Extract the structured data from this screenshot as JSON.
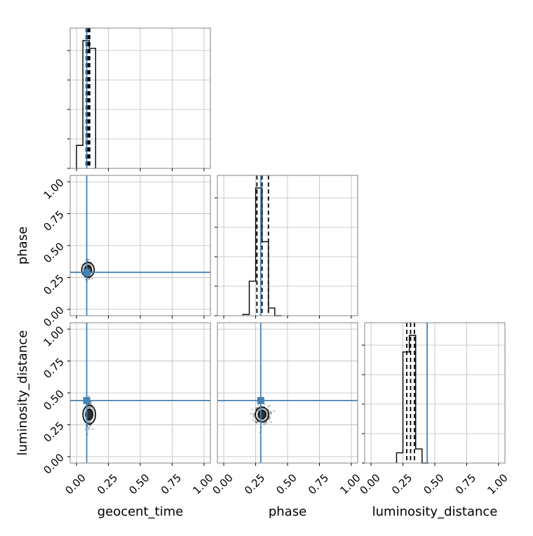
{
  "chart_data": {
    "type": "corner",
    "parameters": [
      "geocent_time",
      "phase",
      "luminosity_distance"
    ],
    "axis_labels": [
      "geocent_time",
      "phase",
      "luminosity_distance"
    ],
    "axis_range": [
      -0.05,
      1.05
    ],
    "tick_values": [
      0.0,
      0.25,
      0.5,
      0.75,
      1.0
    ],
    "tick_labels": [
      "0.00",
      "0.25",
      "0.50",
      "0.75",
      "1.00"
    ],
    "grid": true,
    "colors": {
      "truth": "#4682b4",
      "histogram": "#000000",
      "samples": "#555555",
      "grid": "#bbbbbb",
      "axes": "#808080"
    },
    "truths": {
      "geocent_time": 0.08,
      "phase": 0.29,
      "luminosity_distance": 0.44
    },
    "histograms": [
      {
        "parameter": "geocent_time",
        "bin_edges": [
          0.0,
          0.05,
          0.1,
          0.15
        ],
        "counts": [
          0.18,
          1.0,
          0.94
        ],
        "quantile_lines": [
          0.08,
          0.09,
          0.1
        ]
      },
      {
        "parameter": "phase",
        "bin_edges": [
          0.15,
          0.2,
          0.25,
          0.3,
          0.35,
          0.4,
          0.45
        ],
        "counts": [
          0.01,
          0.27,
          1.0,
          0.58,
          0.06,
          0.0
        ],
        "quantile_lines": [
          0.26,
          0.3,
          0.35
        ]
      },
      {
        "parameter": "luminosity_distance",
        "bin_edges": [
          0.2,
          0.25,
          0.3,
          0.35,
          0.4,
          0.45
        ],
        "counts": [
          0.08,
          0.87,
          1.0,
          0.11,
          0.0
        ],
        "quantile_lines": [
          0.28,
          0.31,
          0.34
        ]
      }
    ],
    "scatter_panels": [
      {
        "x": "geocent_time",
        "y": "phase",
        "center": [
          0.09,
          0.31
        ],
        "spread": [
          0.012,
          0.035
        ]
      },
      {
        "x": "geocent_time",
        "y": "luminosity_distance",
        "center": [
          0.1,
          0.33
        ],
        "spread": [
          0.012,
          0.045
        ]
      },
      {
        "x": "phase",
        "y": "luminosity_distance",
        "center": [
          0.3,
          0.33
        ],
        "spread": [
          0.03,
          0.035
        ]
      }
    ]
  }
}
